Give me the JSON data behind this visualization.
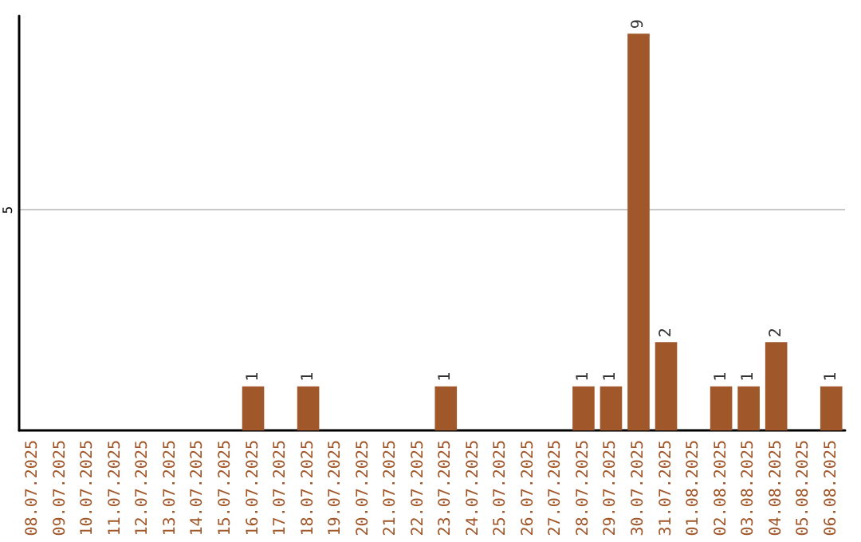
{
  "chart_data": {
    "type": "bar",
    "categories": [
      "08.07.2025",
      "09.07.2025",
      "10.07.2025",
      "11.07.2025",
      "12.07.2025",
      "13.07.2025",
      "14.07.2025",
      "15.07.2025",
      "16.07.2025",
      "17.07.2025",
      "18.07.2025",
      "19.07.2025",
      "20.07.2025",
      "21.07.2025",
      "22.07.2025",
      "23.07.2025",
      "24.07.2025",
      "25.07.2025",
      "26.07.2025",
      "27.07.2025",
      "28.07.2025",
      "29.07.2025",
      "30.07.2025",
      "31.07.2025",
      "01.08.2025",
      "02.08.2025",
      "03.08.2025",
      "04.08.2025",
      "05.08.2025",
      "06.08.2025"
    ],
    "values": [
      0,
      0,
      0,
      0,
      0,
      0,
      0,
      0,
      1,
      0,
      1,
      0,
      0,
      0,
      0,
      1,
      0,
      0,
      0,
      0,
      1,
      1,
      9,
      2,
      0,
      1,
      1,
      2,
      0,
      1
    ],
    "value_labels": [
      null,
      null,
      null,
      null,
      null,
      null,
      null,
      null,
      "1",
      null,
      "1",
      null,
      null,
      null,
      null,
      "1",
      null,
      null,
      null,
      null,
      "1",
      "1",
      "9",
      "2",
      null,
      "1",
      "1",
      "2",
      null,
      "1"
    ],
    "color": "#a0572a",
    "ylim": [
      0,
      9.4
    ],
    "yticks": [
      5
    ],
    "grid": "y"
  }
}
